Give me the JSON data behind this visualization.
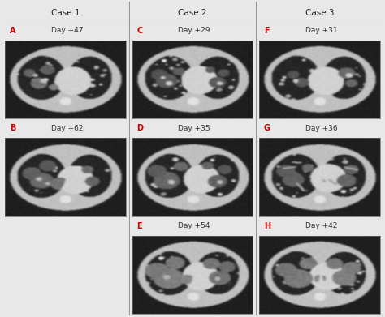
{
  "figsize": [
    4.74,
    3.91
  ],
  "dpi": 100,
  "background_color": "#e8e8e8",
  "columns": [
    "Case 1",
    "Case 2",
    "Case 3"
  ],
  "col_title_fontsize": 7.5,
  "col_title_color": "#222222",
  "label_color": "#cc0000",
  "day_color": "#333333",
  "label_fontsize": 7,
  "day_fontsize": 6.5,
  "panels": [
    {
      "label": "A",
      "day": "Day +47",
      "col": 0,
      "row": 0,
      "variant": 0
    },
    {
      "label": "B",
      "day": "Day +62",
      "col": 0,
      "row": 1,
      "variant": 1
    },
    {
      "label": "C",
      "day": "Day +29",
      "col": 1,
      "row": 0,
      "variant": 2
    },
    {
      "label": "D",
      "day": "Day +35",
      "col": 1,
      "row": 1,
      "variant": 3
    },
    {
      "label": "E",
      "day": "Day +54",
      "col": 1,
      "row": 2,
      "variant": 4
    },
    {
      "label": "F",
      "day": "Day +31",
      "col": 2,
      "row": 0,
      "variant": 5
    },
    {
      "label": "G",
      "day": "Day +36",
      "col": 2,
      "row": 1,
      "variant": 6
    },
    {
      "label": "H",
      "day": "Day +42",
      "col": 2,
      "row": 2,
      "variant": 7
    }
  ],
  "divider_color": "#999999",
  "divider_linewidth": 0.8,
  "header_line_color": "#aaaaaa"
}
